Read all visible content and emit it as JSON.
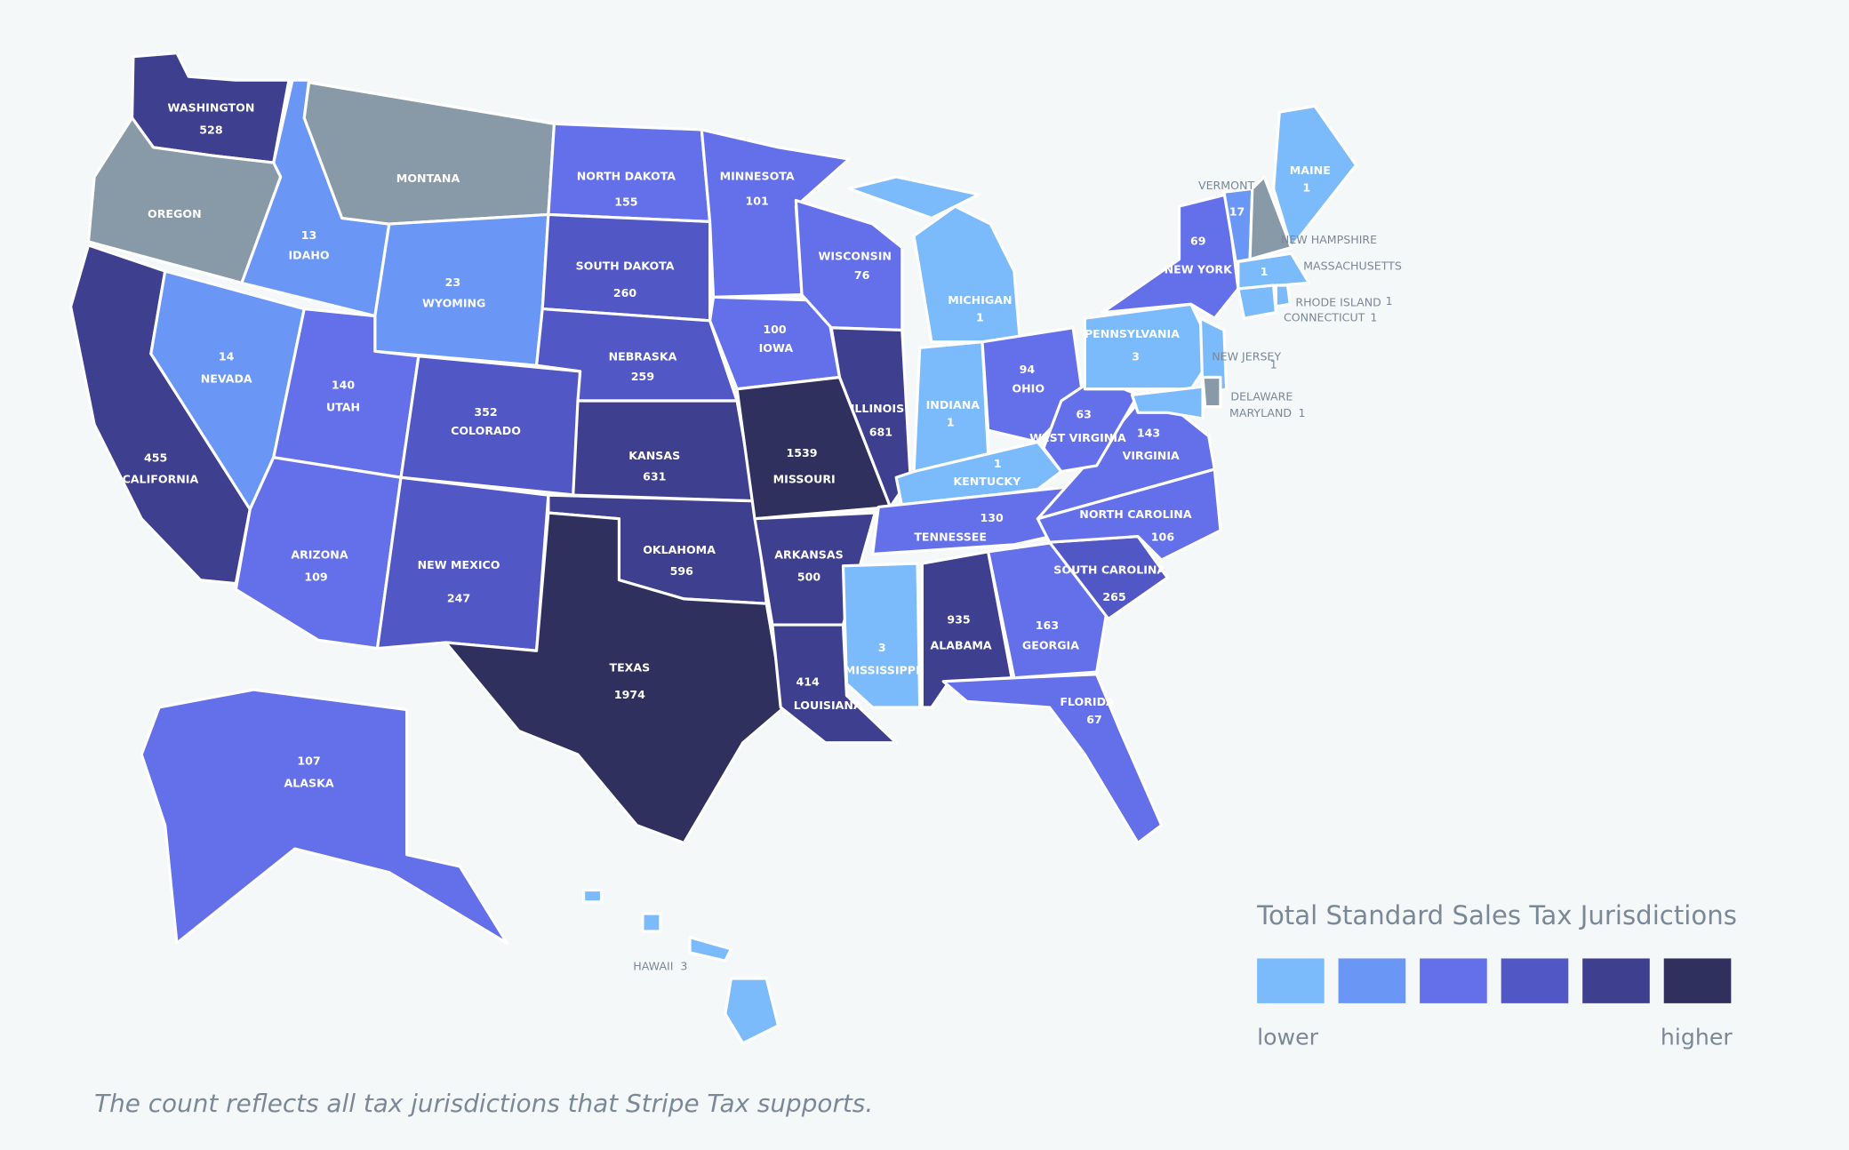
{
  "legend": {
    "title": "Total Standard Sales Tax Jurisdictions",
    "colors": [
      "#7cbbfb",
      "#6a97f6",
      "#6470ea",
      "#5257c6",
      "#3f3f8f",
      "#30305e"
    ],
    "low": "lower",
    "high": "higher"
  },
  "footnote": "The count reflects all tax jurisdictions that Stripe Tax supports.",
  "states": [
    {
      "name": "WASHINGTON",
      "value": 528,
      "color": "#3f3f8f"
    },
    {
      "name": "OREGON",
      "value": null,
      "color": "#8899a7"
    },
    {
      "name": "CALIFORNIA",
      "value": 455,
      "color": "#3f3f8f"
    },
    {
      "name": "IDAHO",
      "value": 13,
      "color": "#6a97f6"
    },
    {
      "name": "MONTANA",
      "value": null,
      "color": "#8899a7"
    },
    {
      "name": "WYOMING",
      "value": 23,
      "color": "#6a97f6"
    },
    {
      "name": "NEVADA",
      "value": 14,
      "color": "#6a97f6"
    },
    {
      "name": "UTAH",
      "value": 140,
      "color": "#6470ea"
    },
    {
      "name": "ARIZONA",
      "value": 109,
      "color": "#6470ea"
    },
    {
      "name": "COLORADO",
      "value": 352,
      "color": "#5257c6"
    },
    {
      "name": "NEW MEXICO",
      "value": 247,
      "color": "#5257c6"
    },
    {
      "name": "NORTH DAKOTA",
      "value": 155,
      "color": "#6470ea"
    },
    {
      "name": "SOUTH DAKOTA",
      "value": 260,
      "color": "#5257c6"
    },
    {
      "name": "NEBRASKA",
      "value": 259,
      "color": "#5257c6"
    },
    {
      "name": "KANSAS",
      "value": 631,
      "color": "#3f3f8f"
    },
    {
      "name": "OKLAHOMA",
      "value": 596,
      "color": "#3f3f8f"
    },
    {
      "name": "TEXAS",
      "value": 1974,
      "color": "#30305e"
    },
    {
      "name": "MINNESOTA",
      "value": 101,
      "color": "#6470ea"
    },
    {
      "name": "IOWA",
      "value": 100,
      "color": "#6470ea"
    },
    {
      "name": "MISSOURI",
      "value": 1539,
      "color": "#30305e"
    },
    {
      "name": "ARKANSAS",
      "value": 500,
      "color": "#3f3f8f"
    },
    {
      "name": "LOUISIANA",
      "value": 414,
      "color": "#3f3f8f"
    },
    {
      "name": "WISCONSIN",
      "value": 76,
      "color": "#6470ea"
    },
    {
      "name": "ILLINOIS",
      "value": 681,
      "color": "#3f3f8f"
    },
    {
      "name": "MICHIGAN",
      "value": 1,
      "color": "#7cbbfb"
    },
    {
      "name": "INDIANA",
      "value": 1,
      "color": "#7cbbfb"
    },
    {
      "name": "OHIO",
      "value": 94,
      "color": "#6470ea"
    },
    {
      "name": "KENTUCKY",
      "value": 1,
      "color": "#7cbbfb"
    },
    {
      "name": "TENNESSEE",
      "value": 130,
      "color": "#6470ea"
    },
    {
      "name": "MISSISSIPPI",
      "value": 3,
      "color": "#7cbbfb"
    },
    {
      "name": "ALABAMA",
      "value": 935,
      "color": "#3f3f8f"
    },
    {
      "name": "GEORGIA",
      "value": 163,
      "color": "#6470ea"
    },
    {
      "name": "FLORIDA",
      "value": 67,
      "color": "#6470ea"
    },
    {
      "name": "SOUTH CAROLINA",
      "value": 265,
      "color": "#5257c6"
    },
    {
      "name": "NORTH CAROLINA",
      "value": 106,
      "color": "#6470ea"
    },
    {
      "name": "VIRGINIA",
      "value": 143,
      "color": "#6470ea"
    },
    {
      "name": "WEST VIRGINIA",
      "value": 63,
      "color": "#6470ea"
    },
    {
      "name": "PENNSYLVANIA",
      "value": 3,
      "color": "#7cbbfb"
    },
    {
      "name": "NEW YORK",
      "value": 69,
      "color": "#6470ea"
    },
    {
      "name": "VERMONT",
      "value": 17,
      "color": "#6a97f6"
    },
    {
      "name": "NEW HAMPSHIRE",
      "value": null,
      "color": "#8899a7"
    },
    {
      "name": "MAINE",
      "value": 1,
      "color": "#7cbbfb"
    },
    {
      "name": "MASSACHUSETTS",
      "value": 1,
      "color": "#7cbbfb"
    },
    {
      "name": "RHODE ISLAND",
      "value": 1,
      "color": "#7cbbfb"
    },
    {
      "name": "CONNECTICUT",
      "value": 1,
      "color": "#7cbbfb"
    },
    {
      "name": "NEW JERSEY",
      "value": 1,
      "color": "#7cbbfb"
    },
    {
      "name": "DELAWARE",
      "value": null,
      "color": "#8899a7"
    },
    {
      "name": "MARYLAND",
      "value": 1,
      "color": "#7cbbfb"
    },
    {
      "name": "ALASKA",
      "value": 107,
      "color": "#6470ea"
    },
    {
      "name": "HAWAII",
      "value": 3,
      "color": "#7cbbfb"
    }
  ]
}
